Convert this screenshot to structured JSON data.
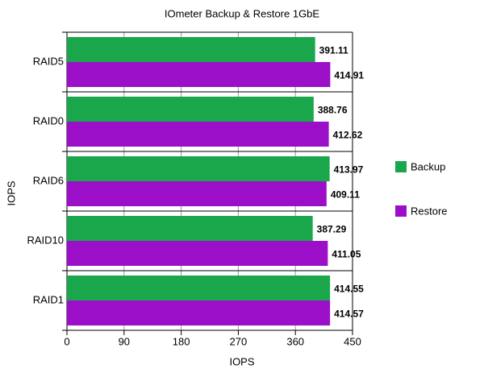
{
  "chart_data": {
    "type": "bar",
    "orientation": "horizontal",
    "title": "IOmeter Backup & Restore 1GbE",
    "x_label": "IOPS",
    "y_label": "IOPS",
    "categories": [
      "RAID5",
      "RAID0",
      "RAID6",
      "RAID10",
      "RAID1"
    ],
    "series": [
      {
        "name": "Backup",
        "color": "#1aa64a",
        "values": [
          391.11,
          388.76,
          413.97,
          387.29,
          414.55
        ]
      },
      {
        "name": "Restore",
        "color": "#9b0fc9",
        "values": [
          414.91,
          412.62,
          409.11,
          411.05,
          414.57
        ]
      }
    ],
    "xlim": [
      0,
      450
    ],
    "xticks": [
      0,
      90,
      180,
      270,
      360,
      450
    ],
    "grid": true,
    "legend": "right"
  }
}
